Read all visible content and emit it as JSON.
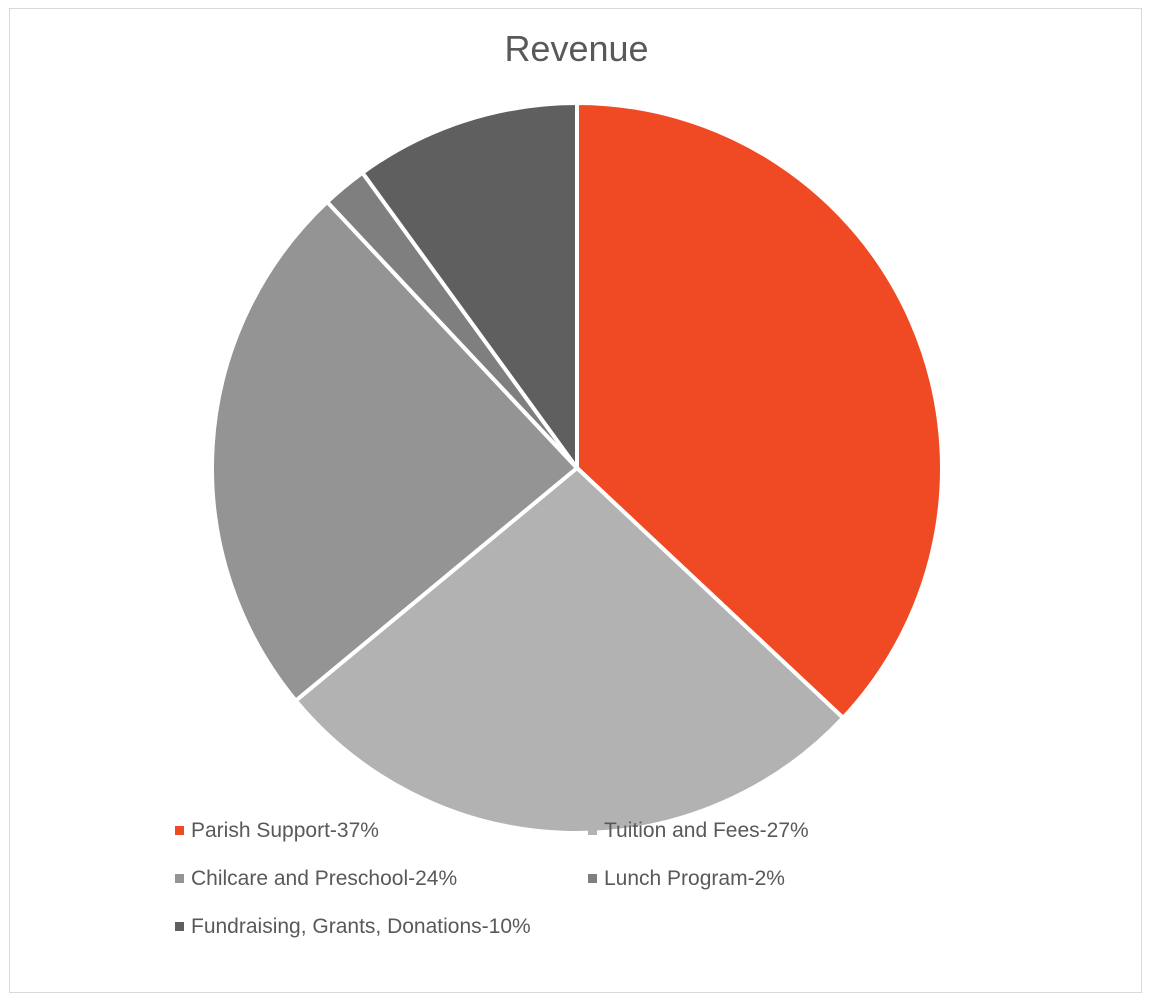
{
  "chart_data": {
    "type": "pie",
    "title": "Revenue",
    "legend_position": "bottom",
    "slices": [
      {
        "label": "Parish Support-37%",
        "value": 37,
        "color": "#ef4a23"
      },
      {
        "label": "Tuition and Fees-27%",
        "value": 27,
        "color": "#b2b2b2"
      },
      {
        "label": "Chilcare and Preschool-24%",
        "value": 24,
        "color": "#949494"
      },
      {
        "label": "Lunch Program-2%",
        "value": 2,
        "color": "#7f7f7f"
      },
      {
        "label": "Fundraising, Grants, Donations-10%",
        "value": 10,
        "color": "#5f5f5f"
      }
    ]
  }
}
